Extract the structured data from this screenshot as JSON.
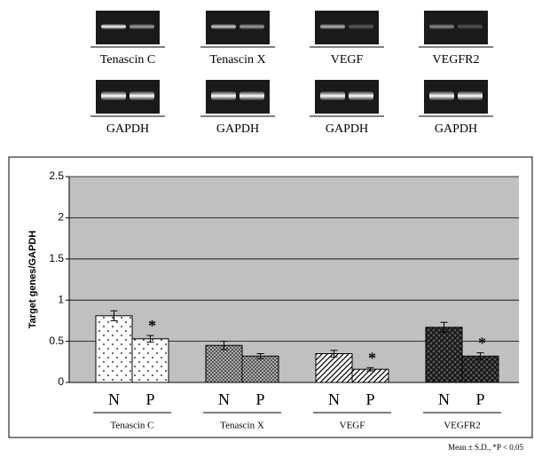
{
  "gels": [
    {
      "target": "Tenascin C",
      "control": "GAPDH"
    },
    {
      "target": "Tenascin X",
      "control": "GAPDH"
    },
    {
      "target": "VEGF",
      "control": "GAPDH"
    },
    {
      "target": "VEGFR2",
      "control": "GAPDH"
    }
  ],
  "chart_data": {
    "type": "bar",
    "y_label": "Target genes/GAPDH",
    "categories": [
      "Tenascin C",
      "Tenascin X",
      "VEGF",
      "VEGFR2"
    ],
    "series": [
      {
        "name": "N",
        "values": [
          0.81,
          0.45,
          0.35,
          0.67
        ],
        "errors": [
          0.06,
          0.05,
          0.04,
          0.06
        ],
        "markers": [
          null,
          null,
          null,
          null
        ]
      },
      {
        "name": "P",
        "values": [
          0.53,
          0.32,
          0.16,
          0.32
        ],
        "errors": [
          0.04,
          0.03,
          0.02,
          0.04
        ],
        "markers": [
          "*",
          null,
          "*",
          "*"
        ]
      }
    ],
    "ylim": [
      0,
      2.5
    ],
    "yticks": [
      0,
      0.5,
      1,
      1.5,
      2,
      2.5
    ],
    "grid": true,
    "footnote": "Mean ± S.D., *P < 0.05"
  }
}
